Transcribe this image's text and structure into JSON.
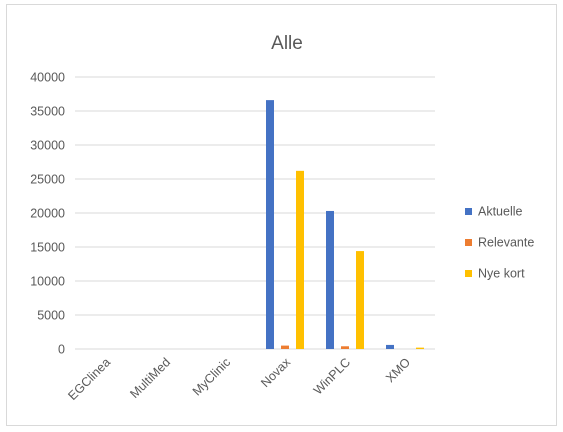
{
  "chart_data": {
    "type": "bar",
    "title": "Alle",
    "xlabel": "",
    "ylabel": "",
    "categories": [
      "EGClinea",
      "MultiMed",
      "MyClinic",
      "Novax",
      "WinPLC",
      "XMO"
    ],
    "series": [
      {
        "name": "Aktuelle",
        "color": "#4472C4",
        "values": [
          0,
          0,
          0,
          36600,
          20300,
          600
        ]
      },
      {
        "name": "Relevante",
        "color": "#ED7D31",
        "values": [
          0,
          0,
          0,
          500,
          400,
          0
        ]
      },
      {
        "name": "Nye kort",
        "color": "#FFC000",
        "values": [
          0,
          0,
          0,
          26200,
          14400,
          200
        ]
      }
    ],
    "ylim": [
      0,
      40000
    ],
    "yticks": [
      "0",
      "5000",
      "10000",
      "15000",
      "20000",
      "25000",
      "30000",
      "35000",
      "40000"
    ],
    "grid": true,
    "legend_position": "right"
  }
}
